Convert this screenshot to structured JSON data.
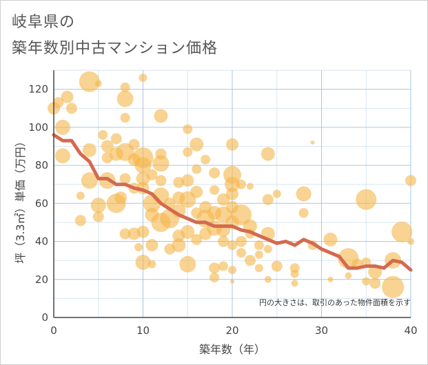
{
  "title_line1": "岐阜県の",
  "title_line2": "築年数別中古マンション価格",
  "colors": {
    "bubble": "#f5b54a",
    "line": "#d46a50",
    "grid_major": "#a8c6e0",
    "grid_minor": "#d7e6f2",
    "axis": "#444444"
  },
  "chart_data": {
    "type": "scatter",
    "title": "岐阜県の 築年数別中古マンション価格",
    "xlabel": "築年数（年）",
    "ylabel": "坪（3.3㎡）単価（万円）",
    "xlim": [
      0,
      40
    ],
    "ylim": [
      0,
      130
    ],
    "xticks": [
      0,
      10,
      20,
      30,
      40
    ],
    "yticks": [
      0,
      20,
      40,
      60,
      80,
      100,
      120
    ],
    "grid": true,
    "note": "円の大きさは、取引のあった物件面積を示す",
    "line_series": {
      "x": [
        0,
        1,
        2,
        3,
        4,
        5,
        6,
        7,
        8,
        9,
        10,
        11,
        12,
        13,
        14,
        15,
        16,
        17,
        18,
        19,
        20,
        21,
        22,
        23,
        24,
        25,
        26,
        27,
        28,
        29,
        30,
        31,
        32,
        33,
        34,
        35,
        36,
        37,
        38,
        39,
        40
      ],
      "y": [
        96,
        93,
        93,
        86,
        82,
        73,
        73,
        70,
        70,
        68,
        67,
        65,
        60,
        57,
        54,
        52,
        50,
        50,
        48,
        48,
        48,
        46,
        45,
        43,
        41,
        39,
        40,
        38,
        41,
        39,
        36,
        34,
        32,
        26,
        26,
        27,
        27,
        26,
        30,
        29,
        25
      ]
    },
    "bubbles": [
      {
        "x": 0,
        "y": 110,
        "s": 9
      },
      {
        "x": 0.5,
        "y": 113,
        "s": 8
      },
      {
        "x": 1,
        "y": 100,
        "s": 11
      },
      {
        "x": 1,
        "y": 85,
        "s": 11
      },
      {
        "x": 1.5,
        "y": 116,
        "s": 9
      },
      {
        "x": 2,
        "y": 110,
        "s": 8
      },
      {
        "x": 3,
        "y": 51,
        "s": 8
      },
      {
        "x": 3,
        "y": 64,
        "s": 6
      },
      {
        "x": 4,
        "y": 124,
        "s": 15
      },
      {
        "x": 4,
        "y": 88,
        "s": 10
      },
      {
        "x": 4,
        "y": 72,
        "s": 12
      },
      {
        "x": 5,
        "y": 59,
        "s": 11
      },
      {
        "x": 5,
        "y": 53,
        "s": 8
      },
      {
        "x": 5,
        "y": 123,
        "s": 5
      },
      {
        "x": 5.5,
        "y": 96,
        "s": 7
      },
      {
        "x": 6,
        "y": 90,
        "s": 9
      },
      {
        "x": 6,
        "y": 84,
        "s": 8
      },
      {
        "x": 6,
        "y": 72,
        "s": 12
      },
      {
        "x": 7,
        "y": 94,
        "s": 8
      },
      {
        "x": 7,
        "y": 86,
        "s": 10
      },
      {
        "x": 7,
        "y": 60,
        "s": 14
      },
      {
        "x": 7.5,
        "y": 63,
        "s": 9
      },
      {
        "x": 8,
        "y": 115,
        "s": 12
      },
      {
        "x": 8,
        "y": 121,
        "s": 7
      },
      {
        "x": 8,
        "y": 105,
        "s": 7
      },
      {
        "x": 8,
        "y": 87,
        "s": 13
      },
      {
        "x": 8,
        "y": 73,
        "s": 8
      },
      {
        "x": 8,
        "y": 44,
        "s": 8
      },
      {
        "x": 9,
        "y": 91,
        "s": 8
      },
      {
        "x": 9,
        "y": 83,
        "s": 9
      },
      {
        "x": 9,
        "y": 68,
        "s": 8
      },
      {
        "x": 9,
        "y": 44,
        "s": 9
      },
      {
        "x": 9.5,
        "y": 37,
        "s": 6
      },
      {
        "x": 10,
        "y": 126,
        "s": 6
      },
      {
        "x": 10,
        "y": 84,
        "s": 15
      },
      {
        "x": 10,
        "y": 80,
        "s": 12
      },
      {
        "x": 10,
        "y": 73,
        "s": 10
      },
      {
        "x": 10,
        "y": 68,
        "s": 9
      },
      {
        "x": 10,
        "y": 45,
        "s": 9
      },
      {
        "x": 10,
        "y": 29,
        "s": 11
      },
      {
        "x": 11,
        "y": 75,
        "s": 8
      },
      {
        "x": 11,
        "y": 60,
        "s": 13
      },
      {
        "x": 11,
        "y": 54,
        "s": 10
      },
      {
        "x": 11,
        "y": 38,
        "s": 9
      },
      {
        "x": 11,
        "y": 28,
        "s": 6
      },
      {
        "x": 12,
        "y": 106,
        "s": 10
      },
      {
        "x": 12,
        "y": 86,
        "s": 8
      },
      {
        "x": 12,
        "y": 81,
        "s": 12
      },
      {
        "x": 12,
        "y": 72,
        "s": 8
      },
      {
        "x": 12,
        "y": 64,
        "s": 12
      },
      {
        "x": 12,
        "y": 50,
        "s": 14
      },
      {
        "x": 13,
        "y": 60,
        "s": 8
      },
      {
        "x": 13,
        "y": 52,
        "s": 14
      },
      {
        "x": 13,
        "y": 36,
        "s": 8
      },
      {
        "x": 14,
        "y": 71,
        "s": 8
      },
      {
        "x": 14,
        "y": 63,
        "s": 9
      },
      {
        "x": 14,
        "y": 56,
        "s": 10
      },
      {
        "x": 14,
        "y": 43,
        "s": 9
      },
      {
        "x": 14,
        "y": 38,
        "s": 10
      },
      {
        "x": 15,
        "y": 99,
        "s": 7
      },
      {
        "x": 15,
        "y": 87,
        "s": 7
      },
      {
        "x": 15,
        "y": 72,
        "s": 9
      },
      {
        "x": 15,
        "y": 62,
        "s": 12
      },
      {
        "x": 15,
        "y": 45,
        "s": 10
      },
      {
        "x": 15,
        "y": 28,
        "s": 12
      },
      {
        "x": 16,
        "y": 91,
        "s": 10
      },
      {
        "x": 16,
        "y": 78,
        "s": 7
      },
      {
        "x": 16,
        "y": 66,
        "s": 9
      },
      {
        "x": 16,
        "y": 55,
        "s": 8
      },
      {
        "x": 16,
        "y": 41,
        "s": 8
      },
      {
        "x": 17,
        "y": 83,
        "s": 7
      },
      {
        "x": 17,
        "y": 58,
        "s": 9
      },
      {
        "x": 17,
        "y": 52,
        "s": 13
      },
      {
        "x": 17,
        "y": 44,
        "s": 9
      },
      {
        "x": 18,
        "y": 76,
        "s": 8
      },
      {
        "x": 18,
        "y": 67,
        "s": 7
      },
      {
        "x": 18,
        "y": 55,
        "s": 10
      },
      {
        "x": 18,
        "y": 47,
        "s": 11
      },
      {
        "x": 18,
        "y": 26,
        "s": 8
      },
      {
        "x": 18,
        "y": 21,
        "s": 7
      },
      {
        "x": 19,
        "y": 62,
        "s": 9
      },
      {
        "x": 19,
        "y": 54,
        "s": 12
      },
      {
        "x": 19,
        "y": 46,
        "s": 10
      },
      {
        "x": 19,
        "y": 40,
        "s": 8
      },
      {
        "x": 19,
        "y": 27,
        "s": 7
      },
      {
        "x": 20,
        "y": 91,
        "s": 9
      },
      {
        "x": 20,
        "y": 75,
        "s": 13
      },
      {
        "x": 20,
        "y": 70,
        "s": 11
      },
      {
        "x": 20,
        "y": 65,
        "s": 9
      },
      {
        "x": 20,
        "y": 58,
        "s": 9
      },
      {
        "x": 20,
        "y": 50,
        "s": 10
      },
      {
        "x": 20,
        "y": 38,
        "s": 7
      },
      {
        "x": 20,
        "y": 25,
        "s": 6
      },
      {
        "x": 20,
        "y": 19,
        "s": 3
      },
      {
        "x": 21,
        "y": 70,
        "s": 7
      },
      {
        "x": 21,
        "y": 54,
        "s": 15
      },
      {
        "x": 21,
        "y": 40,
        "s": 8
      },
      {
        "x": 21,
        "y": 34,
        "s": 7
      },
      {
        "x": 22,
        "y": 69,
        "s": 5
      },
      {
        "x": 22,
        "y": 48,
        "s": 10
      },
      {
        "x": 22,
        "y": 44,
        "s": 7
      },
      {
        "x": 22,
        "y": 30,
        "s": 8
      },
      {
        "x": 23,
        "y": 38,
        "s": 7
      },
      {
        "x": 23,
        "y": 33,
        "s": 6
      },
      {
        "x": 23,
        "y": 26,
        "s": 6
      },
      {
        "x": 24,
        "y": 86,
        "s": 10
      },
      {
        "x": 24,
        "y": 62,
        "s": 8
      },
      {
        "x": 24,
        "y": 44,
        "s": 10
      },
      {
        "x": 24,
        "y": 36,
        "s": 6
      },
      {
        "x": 24,
        "y": 20,
        "s": 5
      },
      {
        "x": 25,
        "y": 65,
        "s": 6
      },
      {
        "x": 25,
        "y": 27,
        "s": 8
      },
      {
        "x": 27,
        "y": 26,
        "s": 7
      },
      {
        "x": 27,
        "y": 23,
        "s": 6
      },
      {
        "x": 27,
        "y": 18,
        "s": 5
      },
      {
        "x": 28,
        "y": 65,
        "s": 11
      },
      {
        "x": 28,
        "y": 55,
        "s": 7
      },
      {
        "x": 29,
        "y": 92,
        "s": 3
      },
      {
        "x": 29,
        "y": 38,
        "s": 7
      },
      {
        "x": 31,
        "y": 41,
        "s": 10
      },
      {
        "x": 31,
        "y": 20,
        "s": 4
      },
      {
        "x": 33,
        "y": 31,
        "s": 15
      },
      {
        "x": 33,
        "y": 22,
        "s": 5
      },
      {
        "x": 34,
        "y": 28,
        "s": 8
      },
      {
        "x": 35,
        "y": 62,
        "s": 15
      },
      {
        "x": 35,
        "y": 29,
        "s": 7
      },
      {
        "x": 35,
        "y": 19,
        "s": 6
      },
      {
        "x": 36,
        "y": 24,
        "s": 10
      },
      {
        "x": 36,
        "y": 18,
        "s": 8
      },
      {
        "x": 38,
        "y": 30,
        "s": 12
      },
      {
        "x": 38,
        "y": 16,
        "s": 16
      },
      {
        "x": 39,
        "y": 45,
        "s": 15
      },
      {
        "x": 40,
        "y": 72,
        "s": 8
      },
      {
        "x": 40,
        "y": 40,
        "s": 5
      }
    ]
  }
}
